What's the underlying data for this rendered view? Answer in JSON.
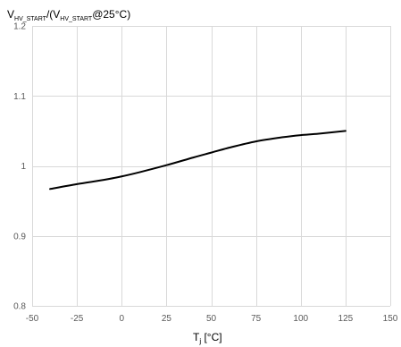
{
  "chart_data": {
    "type": "line",
    "ylabel": {
      "main": "V",
      "sub1": "HV_START",
      "mid": "/(V",
      "sub2": "HV_START",
      "tail": "@25°C)"
    },
    "xlabel": {
      "main": "T",
      "sub": "j",
      "tail": " [°C]"
    },
    "xlim": [
      -50,
      150
    ],
    "ylim": [
      0.8,
      1.2
    ],
    "x_ticks": [
      -50,
      -25,
      0,
      25,
      50,
      75,
      100,
      125,
      150
    ],
    "y_ticks": [
      0.8,
      0.9,
      1,
      1.1,
      1.2
    ],
    "x_tick_labels": [
      "-50",
      "-25",
      "0",
      "25",
      "50",
      "75",
      "100",
      "125",
      "150"
    ],
    "y_tick_labels": [
      "0.8",
      "0.9",
      "1",
      "1.1",
      "1.2"
    ],
    "grid": true,
    "series": [
      {
        "x": [
          -40,
          -25,
          -10,
          0,
          10,
          25,
          40,
          50,
          60,
          75,
          90,
          100,
          110,
          125
        ],
        "y": [
          0.967,
          0.974,
          0.98,
          0.985,
          0.991,
          1.001,
          1.012,
          1.019,
          1.026,
          1.035,
          1.041,
          1.044,
          1.046,
          1.05
        ],
        "color": "#000000"
      }
    ]
  }
}
